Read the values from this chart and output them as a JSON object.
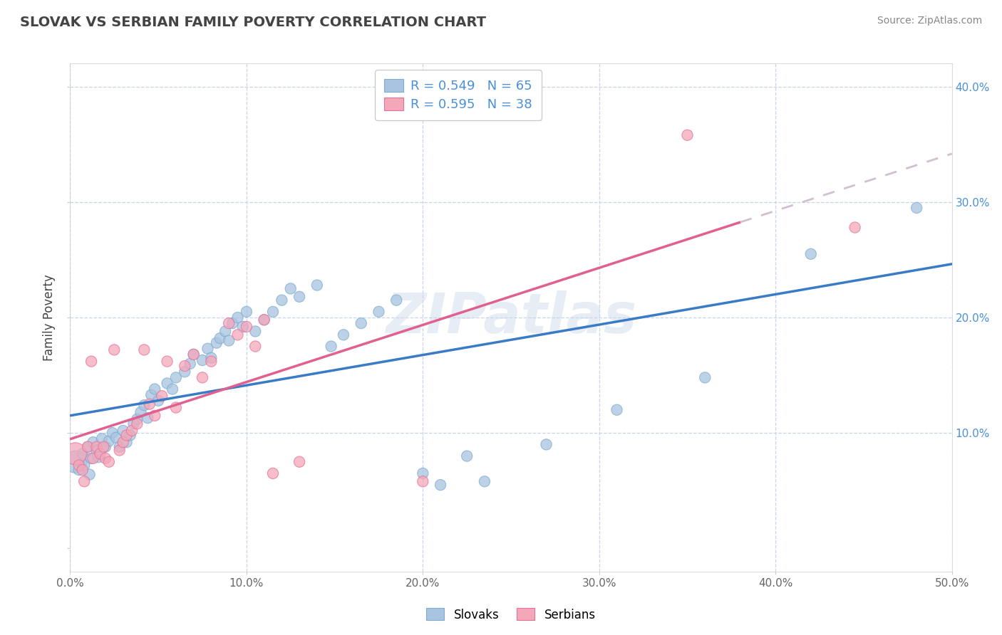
{
  "title": "SLOVAK VS SERBIAN FAMILY POVERTY CORRELATION CHART",
  "source": "Source: ZipAtlas.com",
  "xlabel": "",
  "ylabel": "Family Poverty",
  "xlim": [
    0.0,
    0.5
  ],
  "ylim": [
    -0.02,
    0.42
  ],
  "x_ticks": [
    0.0,
    0.1,
    0.2,
    0.3,
    0.4,
    0.5
  ],
  "x_tick_labels": [
    "0.0%",
    "10.0%",
    "20.0%",
    "30.0%",
    "40.0%",
    "50.0%"
  ],
  "y_ticks": [
    0.0,
    0.1,
    0.2,
    0.3,
    0.4
  ],
  "y_tick_labels_right": [
    "",
    "10.0%",
    "20.0%",
    "30.0%",
    "40.0%"
  ],
  "slovak_color": "#a8c4e0",
  "serbian_color": "#f4a7b9",
  "slovak_edge_color": "#7aadd0",
  "serbian_edge_color": "#e87099",
  "slovak_line_color": "#3a7bc8",
  "serbian_line_color": "#e06090",
  "slovak_R": 0.549,
  "slovak_N": 65,
  "serbian_R": 0.595,
  "serbian_N": 38,
  "legend_label_slovak": "Slovaks",
  "legend_label_serbian": "Serbians",
  "watermark": "ZIPatlas",
  "background_color": "#ffffff",
  "grid_color": "#c8d4e8",
  "slovak_points": [
    [
      0.003,
      0.075
    ],
    [
      0.005,
      0.068
    ],
    [
      0.007,
      0.082
    ],
    [
      0.008,
      0.072
    ],
    [
      0.01,
      0.088
    ],
    [
      0.011,
      0.064
    ],
    [
      0.012,
      0.078
    ],
    [
      0.013,
      0.092
    ],
    [
      0.015,
      0.085
    ],
    [
      0.016,
      0.079
    ],
    [
      0.018,
      0.095
    ],
    [
      0.02,
      0.088
    ],
    [
      0.022,
      0.093
    ],
    [
      0.024,
      0.1
    ],
    [
      0.026,
      0.096
    ],
    [
      0.028,
      0.088
    ],
    [
      0.03,
      0.102
    ],
    [
      0.032,
      0.092
    ],
    [
      0.034,
      0.098
    ],
    [
      0.036,
      0.108
    ],
    [
      0.038,
      0.112
    ],
    [
      0.04,
      0.118
    ],
    [
      0.042,
      0.124
    ],
    [
      0.044,
      0.113
    ],
    [
      0.046,
      0.133
    ],
    [
      0.048,
      0.138
    ],
    [
      0.05,
      0.128
    ],
    [
      0.055,
      0.143
    ],
    [
      0.058,
      0.138
    ],
    [
      0.06,
      0.148
    ],
    [
      0.065,
      0.153
    ],
    [
      0.068,
      0.16
    ],
    [
      0.07,
      0.168
    ],
    [
      0.075,
      0.163
    ],
    [
      0.078,
      0.173
    ],
    [
      0.08,
      0.165
    ],
    [
      0.083,
      0.178
    ],
    [
      0.085,
      0.182
    ],
    [
      0.088,
      0.188
    ],
    [
      0.09,
      0.18
    ],
    [
      0.092,
      0.195
    ],
    [
      0.095,
      0.2
    ],
    [
      0.098,
      0.192
    ],
    [
      0.1,
      0.205
    ],
    [
      0.105,
      0.188
    ],
    [
      0.11,
      0.198
    ],
    [
      0.115,
      0.205
    ],
    [
      0.12,
      0.215
    ],
    [
      0.125,
      0.225
    ],
    [
      0.13,
      0.218
    ],
    [
      0.14,
      0.228
    ],
    [
      0.148,
      0.175
    ],
    [
      0.155,
      0.185
    ],
    [
      0.165,
      0.195
    ],
    [
      0.175,
      0.205
    ],
    [
      0.185,
      0.215
    ],
    [
      0.2,
      0.065
    ],
    [
      0.21,
      0.055
    ],
    [
      0.225,
      0.08
    ],
    [
      0.235,
      0.058
    ],
    [
      0.27,
      0.09
    ],
    [
      0.31,
      0.12
    ],
    [
      0.36,
      0.148
    ],
    [
      0.42,
      0.255
    ],
    [
      0.48,
      0.295
    ]
  ],
  "serbian_points": [
    [
      0.003,
      0.082
    ],
    [
      0.005,
      0.072
    ],
    [
      0.007,
      0.068
    ],
    [
      0.008,
      0.058
    ],
    [
      0.01,
      0.088
    ],
    [
      0.012,
      0.162
    ],
    [
      0.013,
      0.078
    ],
    [
      0.015,
      0.088
    ],
    [
      0.017,
      0.082
    ],
    [
      0.019,
      0.088
    ],
    [
      0.02,
      0.078
    ],
    [
      0.022,
      0.075
    ],
    [
      0.025,
      0.172
    ],
    [
      0.028,
      0.085
    ],
    [
      0.03,
      0.092
    ],
    [
      0.032,
      0.098
    ],
    [
      0.035,
      0.102
    ],
    [
      0.038,
      0.108
    ],
    [
      0.042,
      0.172
    ],
    [
      0.045,
      0.125
    ],
    [
      0.048,
      0.115
    ],
    [
      0.052,
      0.132
    ],
    [
      0.055,
      0.162
    ],
    [
      0.06,
      0.122
    ],
    [
      0.065,
      0.158
    ],
    [
      0.07,
      0.168
    ],
    [
      0.075,
      0.148
    ],
    [
      0.08,
      0.162
    ],
    [
      0.09,
      0.195
    ],
    [
      0.095,
      0.185
    ],
    [
      0.1,
      0.192
    ],
    [
      0.105,
      0.175
    ],
    [
      0.11,
      0.198
    ],
    [
      0.115,
      0.065
    ],
    [
      0.13,
      0.075
    ],
    [
      0.2,
      0.058
    ],
    [
      0.35,
      0.358
    ],
    [
      0.445,
      0.278
    ]
  ],
  "slovak_sizes": [
    500,
    120,
    120,
    120,
    120,
    120,
    120,
    120,
    120,
    120,
    120,
    120,
    120,
    120,
    120,
    120,
    120,
    120,
    120,
    120,
    120,
    120,
    120,
    120,
    120,
    120,
    120,
    120,
    120,
    120,
    120,
    120,
    120,
    120,
    120,
    120,
    120,
    120,
    120,
    120,
    120,
    120,
    120,
    120,
    120,
    120,
    120,
    120,
    120,
    120,
    120,
    120,
    120,
    120,
    120,
    120,
    120,
    120,
    120,
    120,
    120,
    120,
    120,
    120,
    120
  ],
  "serbian_sizes": [
    500,
    120,
    120,
    120,
    120,
    120,
    120,
    120,
    120,
    120,
    120,
    120,
    120,
    120,
    120,
    120,
    120,
    120,
    120,
    120,
    120,
    120,
    120,
    120,
    120,
    120,
    120,
    120,
    120,
    120,
    120,
    120,
    120,
    120,
    120,
    120,
    120,
    120
  ]
}
